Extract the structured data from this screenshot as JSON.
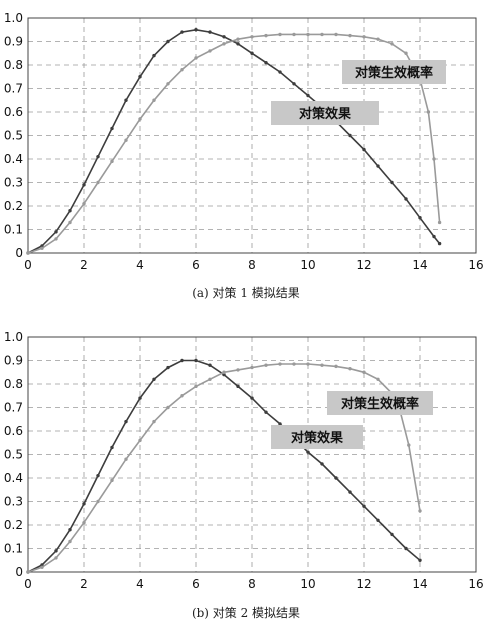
{
  "chart_data": [
    {
      "type": "line",
      "caption": "(a) 对策 1 模拟结果",
      "xlim": [
        0,
        16
      ],
      "ylim": [
        0,
        1.0
      ],
      "xticks": [
        "0",
        "2",
        "4",
        "6",
        "8",
        "10",
        "12",
        "14",
        "16"
      ],
      "yticks": [
        "0",
        "0.1",
        "0.2",
        "0.3",
        "0.4",
        "0.5",
        "0.6",
        "0.7",
        "0.8",
        "0.9",
        "1.0"
      ],
      "grid": true,
      "annotations": [
        "对策生效概率",
        "对策效果"
      ],
      "series": [
        {
          "color": "#3d3d3d",
          "x": [
            0,
            0.5,
            1,
            1.5,
            2,
            2.5,
            3,
            3.5,
            4,
            4.5,
            5,
            5.5,
            6,
            6.5,
            7,
            7.5,
            8,
            8.5,
            9,
            9.5,
            10,
            10.5,
            11,
            11.5,
            12,
            12.5,
            13,
            13.5,
            14,
            14.5,
            14.7
          ],
          "y": [
            0,
            0.03,
            0.09,
            0.18,
            0.29,
            0.41,
            0.53,
            0.65,
            0.75,
            0.84,
            0.9,
            0.94,
            0.95,
            0.94,
            0.92,
            0.89,
            0.85,
            0.81,
            0.77,
            0.72,
            0.67,
            0.62,
            0.56,
            0.5,
            0.44,
            0.37,
            0.3,
            0.23,
            0.15,
            0.07,
            0.04
          ]
        },
        {
          "color": "#9a9a9a",
          "x": [
            0,
            0.5,
            1,
            1.5,
            2,
            2.5,
            3,
            3.5,
            4,
            4.5,
            5,
            5.5,
            6,
            6.5,
            7,
            7.5,
            8,
            8.5,
            9,
            9.5,
            10,
            10.5,
            11,
            11.5,
            12,
            12.5,
            13,
            13.5,
            14,
            14.3,
            14.5,
            14.7
          ],
          "y": [
            0,
            0.02,
            0.06,
            0.13,
            0.21,
            0.3,
            0.39,
            0.48,
            0.57,
            0.65,
            0.72,
            0.78,
            0.83,
            0.86,
            0.89,
            0.91,
            0.92,
            0.925,
            0.93,
            0.93,
            0.93,
            0.93,
            0.93,
            0.925,
            0.92,
            0.91,
            0.89,
            0.85,
            0.74,
            0.6,
            0.4,
            0.13
          ]
        }
      ]
    },
    {
      "type": "line",
      "caption": "(b) 对策 2 模拟结果",
      "xlim": [
        0,
        16
      ],
      "ylim": [
        0,
        1.0
      ],
      "xticks": [
        "0",
        "2",
        "4",
        "6",
        "8",
        "10",
        "12",
        "14",
        "16"
      ],
      "yticks": [
        "0",
        "0.1",
        "0.2",
        "0.3",
        "0.4",
        "0.5",
        "0.6",
        "0.7",
        "0.8",
        "0.9",
        "1.0"
      ],
      "grid": true,
      "annotations": [
        "对策生效概率",
        "对策效果"
      ],
      "series": [
        {
          "color": "#3d3d3d",
          "x": [
            0,
            0.5,
            1,
            1.5,
            2,
            2.5,
            3,
            3.5,
            4,
            4.5,
            5,
            5.5,
            6,
            6.5,
            7,
            7.5,
            8,
            8.5,
            9,
            9.5,
            10,
            10.5,
            11,
            11.5,
            12,
            12.5,
            13,
            13.5,
            14
          ],
          "y": [
            0,
            0.03,
            0.09,
            0.18,
            0.29,
            0.41,
            0.53,
            0.64,
            0.74,
            0.82,
            0.87,
            0.9,
            0.9,
            0.88,
            0.84,
            0.79,
            0.74,
            0.68,
            0.63,
            0.57,
            0.51,
            0.46,
            0.4,
            0.34,
            0.28,
            0.22,
            0.16,
            0.1,
            0.05
          ]
        },
        {
          "color": "#9a9a9a",
          "x": [
            0,
            0.5,
            1,
            1.5,
            2,
            2.5,
            3,
            3.5,
            4,
            4.5,
            5,
            5.5,
            6,
            6.5,
            7,
            7.5,
            8,
            8.5,
            9,
            9.5,
            10,
            10.5,
            11,
            11.5,
            12,
            12.5,
            13,
            13.3,
            13.6,
            14
          ],
          "y": [
            0,
            0.02,
            0.06,
            0.13,
            0.21,
            0.3,
            0.39,
            0.48,
            0.56,
            0.64,
            0.7,
            0.75,
            0.79,
            0.82,
            0.85,
            0.86,
            0.87,
            0.88,
            0.885,
            0.885,
            0.885,
            0.88,
            0.875,
            0.865,
            0.85,
            0.82,
            0.76,
            0.68,
            0.54,
            0.26
          ]
        }
      ]
    }
  ]
}
